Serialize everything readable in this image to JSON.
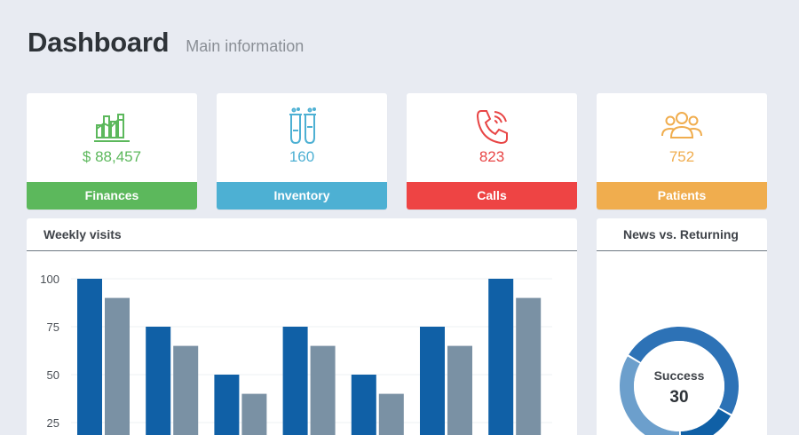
{
  "header": {
    "title": "Dashboard",
    "subtitle": "Main information"
  },
  "stats": [
    {
      "name": "finances",
      "value": "$ 88,457",
      "label": "Finances",
      "color": "#5cb85c",
      "icon": "bar-chart-icon"
    },
    {
      "name": "inventory",
      "value": "160",
      "label": "Inventory",
      "color": "#4db0d3",
      "icon": "test-tubes-icon"
    },
    {
      "name": "calls",
      "value": "823",
      "label": "Calls",
      "color": "#ee4444",
      "icon": "phone-icon"
    },
    {
      "name": "patients",
      "value": "752",
      "label": "Patients",
      "color": "#f0ad4e",
      "icon": "users-icon"
    }
  ],
  "weekly": {
    "title": "Weekly visits",
    "chart_data": {
      "type": "bar",
      "ylim": [
        0,
        100
      ],
      "yticks": [
        25,
        50,
        75,
        100
      ],
      "grid": true,
      "series": [
        {
          "values": [
            100,
            75,
            50,
            75,
            50,
            75,
            100
          ],
          "color": "#1060a6"
        },
        {
          "values": [
            90,
            65,
            40,
            65,
            40,
            65,
            90
          ],
          "color": "#7a91a4"
        }
      ]
    }
  },
  "donut": {
    "title": "News vs. Returning",
    "center_label": "Success",
    "center_value": "30",
    "colors": [
      "#2d72b6",
      "#6c9fcc",
      "#1060a6"
    ]
  }
}
